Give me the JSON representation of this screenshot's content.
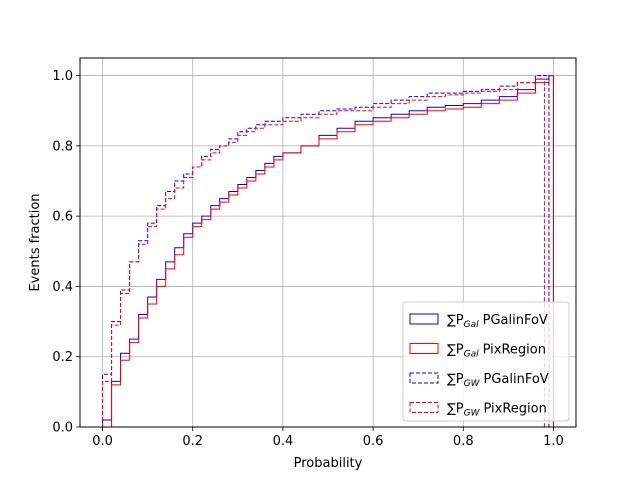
{
  "chart_data": {
    "type": "step",
    "xlabel": "Probability",
    "ylabel": "Events fraction",
    "xlim": [
      -0.05,
      1.05
    ],
    "ylim": [
      0,
      1.05
    ],
    "xticks": [
      "0.0",
      "0.2",
      "0.4",
      "0.6",
      "0.8",
      "1.0"
    ],
    "yticks": [
      "0.0",
      "0.2",
      "0.4",
      "0.6",
      "0.8",
      "1.0"
    ],
    "xtick_values": [
      0,
      0.2,
      0.4,
      0.6,
      0.8,
      1.0
    ],
    "ytick_values": [
      0,
      0.2,
      0.4,
      0.6,
      0.8,
      1.0
    ],
    "grid": true,
    "legend_position": "lower-right",
    "series": [
      {
        "name": "PGalinFoV",
        "legend_prefix": "∑P",
        "legend_sub": "Gal",
        "color": "#0000ff",
        "dashed": false,
        "x": [
          0,
          0.02,
          0.04,
          0.06,
          0.08,
          0.1,
          0.12,
          0.14,
          0.16,
          0.18,
          0.2,
          0.22,
          0.24,
          0.26,
          0.28,
          0.3,
          0.32,
          0.34,
          0.36,
          0.38,
          0.4,
          0.44,
          0.48,
          0.52,
          0.56,
          0.6,
          0.64,
          0.68,
          0.72,
          0.76,
          0.8,
          0.84,
          0.88,
          0.92,
          0.96,
          0.99,
          1.0
        ],
        "y": [
          0.02,
          0.13,
          0.21,
          0.25,
          0.32,
          0.37,
          0.42,
          0.47,
          0.51,
          0.55,
          0.58,
          0.6,
          0.63,
          0.65,
          0.67,
          0.69,
          0.71,
          0.73,
          0.75,
          0.77,
          0.78,
          0.8,
          0.83,
          0.85,
          0.87,
          0.88,
          0.89,
          0.9,
          0.91,
          0.915,
          0.92,
          0.93,
          0.94,
          0.96,
          0.99,
          1.0,
          0
        ]
      },
      {
        "name": "PixRegion",
        "legend_prefix": "∑P",
        "legend_sub": "Gal",
        "color": "#ff0000",
        "dashed": false,
        "x": [
          0,
          0.02,
          0.04,
          0.06,
          0.08,
          0.1,
          0.12,
          0.14,
          0.16,
          0.18,
          0.2,
          0.22,
          0.24,
          0.26,
          0.28,
          0.3,
          0.32,
          0.34,
          0.36,
          0.38,
          0.4,
          0.44,
          0.48,
          0.52,
          0.56,
          0.6,
          0.64,
          0.68,
          0.72,
          0.76,
          0.8,
          0.84,
          0.88,
          0.92,
          0.96,
          0.99,
          1.0
        ],
        "y": [
          0.0,
          0.12,
          0.19,
          0.24,
          0.31,
          0.35,
          0.4,
          0.45,
          0.49,
          0.54,
          0.57,
          0.59,
          0.62,
          0.64,
          0.66,
          0.68,
          0.7,
          0.72,
          0.74,
          0.76,
          0.78,
          0.8,
          0.82,
          0.84,
          0.86,
          0.87,
          0.88,
          0.89,
          0.9,
          0.905,
          0.91,
          0.92,
          0.93,
          0.95,
          0.98,
          1.0,
          0
        ]
      },
      {
        "name": "PGalinFoV",
        "legend_prefix": "∑P",
        "legend_sub": "GW",
        "color": "#0000ff",
        "dashed": true,
        "x": [
          0,
          0.01,
          0.02,
          0.04,
          0.06,
          0.08,
          0.1,
          0.12,
          0.14,
          0.16,
          0.18,
          0.2,
          0.22,
          0.24,
          0.26,
          0.28,
          0.3,
          0.32,
          0.34,
          0.36,
          0.38,
          0.4,
          0.44,
          0.48,
          0.52,
          0.56,
          0.6,
          0.64,
          0.68,
          0.72,
          0.76,
          0.8,
          0.84,
          0.88,
          0.92,
          0.96,
          0.99
        ],
        "y": [
          0.15,
          0.15,
          0.3,
          0.39,
          0.47,
          0.53,
          0.58,
          0.63,
          0.67,
          0.7,
          0.72,
          0.74,
          0.77,
          0.79,
          0.8,
          0.82,
          0.84,
          0.85,
          0.86,
          0.87,
          0.87,
          0.88,
          0.89,
          0.9,
          0.905,
          0.91,
          0.92,
          0.93,
          0.94,
          0.95,
          0.95,
          0.955,
          0.96,
          0.97,
          0.98,
          1.0,
          0
        ]
      },
      {
        "name": "PixRegion",
        "legend_prefix": "∑P",
        "legend_sub": "GW",
        "color": "#ff0000",
        "dashed": true,
        "x": [
          0,
          0.01,
          0.02,
          0.04,
          0.06,
          0.08,
          0.1,
          0.12,
          0.14,
          0.16,
          0.18,
          0.2,
          0.22,
          0.24,
          0.26,
          0.28,
          0.3,
          0.32,
          0.34,
          0.36,
          0.38,
          0.4,
          0.44,
          0.48,
          0.52,
          0.56,
          0.6,
          0.64,
          0.68,
          0.72,
          0.76,
          0.8,
          0.84,
          0.88,
          0.92,
          0.96,
          0.98
        ],
        "y": [
          0.13,
          0.13,
          0.29,
          0.38,
          0.47,
          0.52,
          0.57,
          0.62,
          0.65,
          0.68,
          0.71,
          0.74,
          0.76,
          0.78,
          0.8,
          0.81,
          0.83,
          0.84,
          0.85,
          0.86,
          0.86,
          0.87,
          0.88,
          0.89,
          0.9,
          0.9,
          0.91,
          0.92,
          0.93,
          0.94,
          0.945,
          0.95,
          0.955,
          0.96,
          0.98,
          0.99,
          0
        ]
      }
    ]
  }
}
